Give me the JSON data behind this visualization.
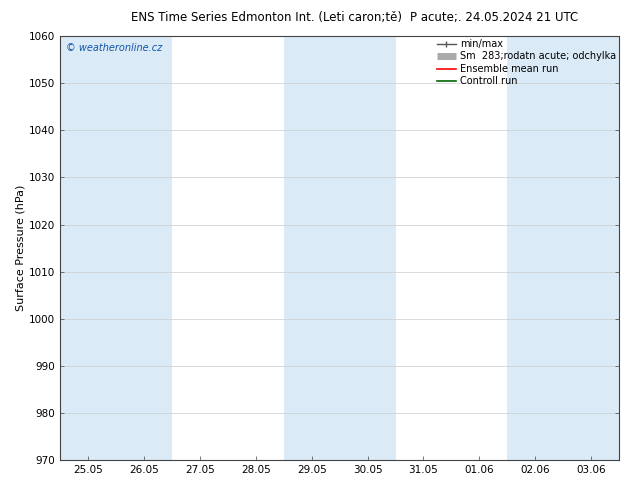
{
  "title_left": "ENS Time Series Edmonton Int. (Leti caron;tě)",
  "title_right": "P acute;. 24.05.2024 21 UTC",
  "ylabel": "Surface Pressure (hPa)",
  "ylim": [
    970,
    1060
  ],
  "yticks": [
    970,
    980,
    990,
    1000,
    1010,
    1020,
    1030,
    1040,
    1050,
    1060
  ],
  "xlabels": [
    "25.05",
    "26.05",
    "27.05",
    "28.05",
    "29.05",
    "30.05",
    "31.05",
    "01.06",
    "02.06",
    "03.06"
  ],
  "watermark": "© weatheronline.cz",
  "legend_entries": [
    "min/max",
    "Sm  283;rodatn acute; odchylka",
    "Ensemble mean run",
    "Controll run"
  ],
  "band_color": "#daeaf6",
  "background_color": "#ffffff",
  "title_fontsize": 8.5,
  "ylabel_fontsize": 8,
  "tick_fontsize": 7.5,
  "legend_fontsize": 7,
  "legend_color_minmax": "#555555",
  "legend_color_std": "#aaaaaa",
  "legend_color_ensemble": "#ff0000",
  "legend_color_control": "#006600",
  "band_positions": [
    0,
    1,
    4,
    5,
    8,
    9
  ],
  "spine_color": "#444444",
  "grid_color": "#cccccc",
  "tick_color": "#444444",
  "watermark_color": "#1155aa"
}
